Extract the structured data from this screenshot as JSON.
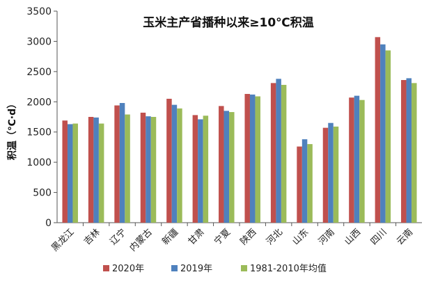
{
  "chart_data": {
    "type": "bar",
    "title": "玉米主产省播种以来≥10℃积温",
    "ylabel": "积温（℃·d）",
    "xlabel": "",
    "ylim": [
      0,
      3500
    ],
    "yticks": [
      0,
      500,
      1000,
      1500,
      2000,
      2500,
      3000,
      3500
    ],
    "grid": false,
    "legend_position": "bottom",
    "categories": [
      "黑龙江",
      "吉林",
      "辽宁",
      "内蒙古",
      "新疆",
      "甘肃",
      "宁夏",
      "陕西",
      "河北",
      "山东",
      "河南",
      "山西",
      "四川",
      "云南"
    ],
    "series": [
      {
        "name": "2020年",
        "color": "#c0504d",
        "values": [
          1690,
          1750,
          1940,
          1820,
          2050,
          1780,
          1930,
          2130,
          2310,
          1260,
          1570,
          2070,
          3070,
          2360
        ]
      },
      {
        "name": "2019年",
        "color": "#4f81bd",
        "values": [
          1630,
          1740,
          1980,
          1760,
          1950,
          1710,
          1850,
          2120,
          2380,
          1380,
          1650,
          2100,
          2950,
          2390
        ]
      },
      {
        "name": "1981-2010年均值",
        "color": "#9bbb59",
        "values": [
          1640,
          1640,
          1790,
          1750,
          1890,
          1770,
          1830,
          2090,
          2280,
          1300,
          1590,
          2030,
          2850,
          2310
        ]
      }
    ]
  }
}
